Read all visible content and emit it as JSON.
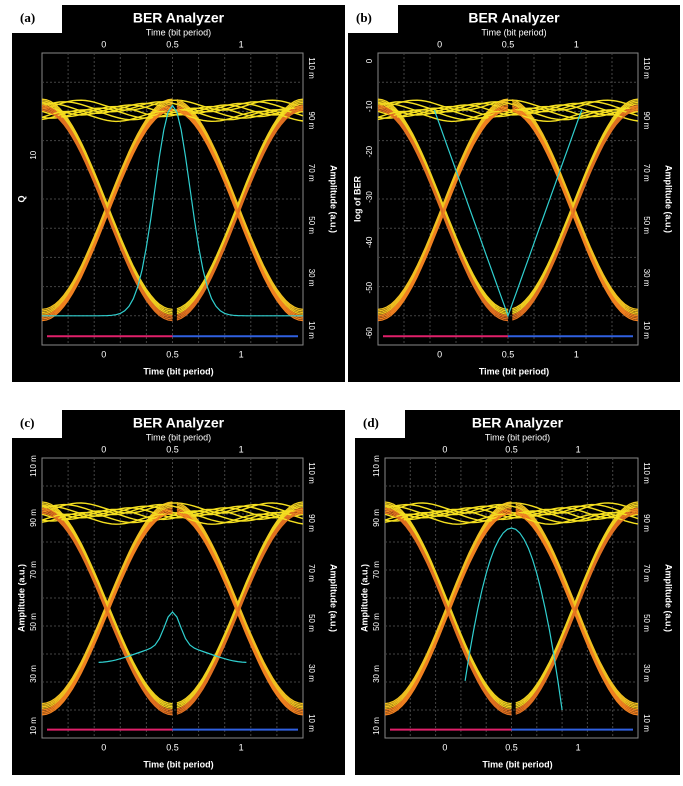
{
  "panels": [
    {
      "label": "(a)",
      "title": "BER Analyzer",
      "top_axis": "Time (bit period)",
      "bottom_axis": "Time (bit period)",
      "left_axis": "Q",
      "right_axis": "Amplitude (a.u.)",
      "x_ticks": [
        "0",
        "0.5",
        "1"
      ],
      "left_ticks": [
        "10"
      ],
      "right_ticks": [
        "110 m",
        "90 m",
        "70 m",
        "50 m",
        "30 m",
        "10 m"
      ]
    },
    {
      "label": "(b)",
      "title": "BER Analyzer",
      "top_axis": "Time (bit period)",
      "bottom_axis": "Time (bit period)",
      "left_axis": "log of BER",
      "right_axis": "Amplitude (a.u.)",
      "x_ticks": [
        "0",
        "0.5",
        "1"
      ],
      "left_ticks": [
        "0",
        "-10",
        "-20",
        "-30",
        "-40",
        "-50",
        "-60"
      ],
      "right_ticks": [
        "110 m",
        "90 m",
        "70 m",
        "50 m",
        "30 m",
        "10 m"
      ]
    },
    {
      "label": "(c)",
      "title": "BER Analyzer",
      "top_axis": "Time (bit period)",
      "bottom_axis": "Time (bit period)",
      "left_axis": "Amplitude (a.u.)",
      "right_axis": "Amplitude (a.u.)",
      "x_ticks": [
        "0",
        "0.5",
        "1"
      ],
      "left_ticks": [
        "110 m",
        "90 m",
        "70 m",
        "50 m",
        "30 m",
        "10 m"
      ],
      "right_ticks": [
        "110 m",
        "90 m",
        "70 m",
        "50 m",
        "30 m",
        "10 m"
      ]
    },
    {
      "label": "(d)",
      "title": "BER Analyzer",
      "top_axis": "Time (bit period)",
      "bottom_axis": "Time (bit period)",
      "left_axis": "Amplitude (a.u.)",
      "right_axis": "Amplitude (a.u.)",
      "x_ticks": [
        "0",
        "0.5",
        "1"
      ],
      "left_ticks": [
        "110 m",
        "90 m",
        "70 m",
        "50 m",
        "30 m",
        "10 m"
      ],
      "right_ticks": [
        "110 m",
        "90 m",
        "70 m",
        "50 m",
        "30 m",
        "10 m"
      ]
    }
  ]
}
